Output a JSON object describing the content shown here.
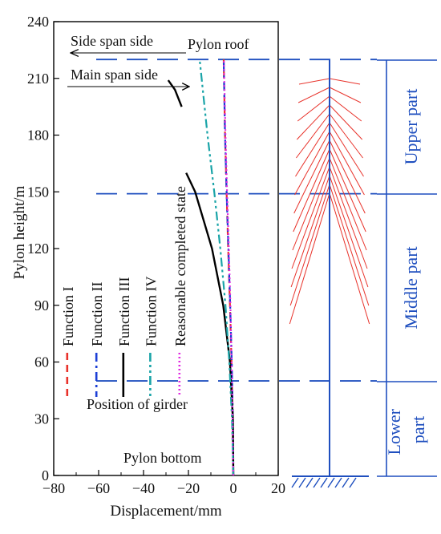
{
  "chart_data": {
    "type": "line",
    "xlabel": "Displacement/mm",
    "ylabel": "Pylon height/m",
    "xlim": [
      -80,
      20
    ],
    "ylim": [
      0,
      240
    ],
    "xticks": [
      -80,
      -60,
      -40,
      -20,
      0,
      20
    ],
    "yticks": [
      0,
      30,
      60,
      90,
      120,
      150,
      180,
      210,
      240
    ],
    "series": [
      {
        "name": "Function I",
        "color": "#e8322a",
        "style": "dash",
        "x": [
          0,
          -0.3,
          -0.8,
          -1.5,
          -2.3,
          -3.0,
          -3.7,
          -4.3
        ],
        "y": [
          0,
          30,
          60,
          90,
          120,
          150,
          180,
          220
        ]
      },
      {
        "name": "Function II",
        "color": "#1c3fd6",
        "style": "dashdot",
        "x": [
          0,
          -0.2,
          -0.7,
          -1.4,
          -2.2,
          -3.0,
          -3.7,
          -4.3
        ],
        "y": [
          0,
          30,
          60,
          90,
          120,
          150,
          180,
          220
        ]
      },
      {
        "name": "Function III",
        "color": "#000000",
        "style": "solid",
        "x": [
          0,
          -0.2,
          -1.5,
          -4.5,
          -9.5,
          -17.0,
          -21.0
        ],
        "y": [
          0,
          30,
          60,
          90,
          120,
          150,
          160
        ]
      },
      {
        "name": "Function IV",
        "color": "#1aa4a8",
        "style": "dashdotdot",
        "x": [
          0,
          -0.6,
          -1.8,
          -3.5,
          -5.8,
          -8.5,
          -11.5,
          -15.0
        ],
        "y": [
          0,
          30,
          60,
          90,
          120,
          150,
          180,
          220
        ]
      },
      {
        "name": "Reasonable completed state",
        "color": "#e02be0",
        "style": "dot",
        "x": [
          0,
          -0.6,
          -1.3,
          -2.0,
          -2.8,
          -3.5,
          -4.2
        ],
        "y": [
          0,
          50,
          90,
          120,
          150,
          180,
          220
        ]
      }
    ],
    "annotations": {
      "side_span": "Side span side",
      "pylon_roof": "Pylon roof",
      "main_span": "Main span side",
      "girder": "Position of girder",
      "pylon_bottom": "Pylon bottom"
    },
    "reference_heights": [
      220,
      149,
      50
    ],
    "parts": [
      "Upper part",
      "Middle part",
      "Lower part"
    ],
    "colors": {
      "axis": "#000000",
      "diagram": "#1f4fbf",
      "cable": "#e8322a"
    }
  }
}
